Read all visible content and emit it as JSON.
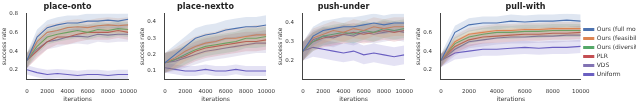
{
  "chart_data": [
    {
      "type": "line",
      "title": "place-onto",
      "x_label": "iterations",
      "y_label": "success rate",
      "x": [
        0,
        1000,
        2000,
        3000,
        4000,
        5000,
        6000,
        7000,
        8000,
        9000,
        10000
      ],
      "xlim": [
        0,
        10000
      ],
      "xticks": [
        0,
        2000,
        4000,
        6000,
        8000,
        10000
      ],
      "ylim": [
        0.1,
        0.8
      ],
      "yticks": [
        0.2,
        0.4,
        0.6,
        0.8
      ],
      "grid": false,
      "series": [
        {
          "name": "Ours (full model)",
          "color": "#4c72b0",
          "values": [
            0.3,
            0.55,
            0.65,
            0.68,
            0.7,
            0.7,
            0.72,
            0.72,
            0.73,
            0.72,
            0.74
          ],
          "error": [
            0.08,
            0.08,
            0.08,
            0.08,
            0.08,
            0.08,
            0.08,
            0.08,
            0.08,
            0.08,
            0.08
          ]
        },
        {
          "name": "Ours (feasibility only)",
          "color": "#dd8452",
          "values": [
            0.3,
            0.5,
            0.6,
            0.62,
            0.65,
            0.66,
            0.65,
            0.67,
            0.68,
            0.67,
            0.68
          ],
          "error": [
            0.08,
            0.08,
            0.08,
            0.08,
            0.08,
            0.08,
            0.08,
            0.08,
            0.08,
            0.08,
            0.08
          ]
        },
        {
          "name": "Ours (diversity only)",
          "color": "#55a868",
          "values": [
            0.3,
            0.45,
            0.55,
            0.58,
            0.6,
            0.62,
            0.6,
            0.63,
            0.62,
            0.64,
            0.63
          ],
          "error": [
            0.08,
            0.08,
            0.08,
            0.08,
            0.08,
            0.08,
            0.08,
            0.08,
            0.08,
            0.08,
            0.08
          ]
        },
        {
          "name": "PLR",
          "color": "#c44e52",
          "values": [
            0.3,
            0.4,
            0.5,
            0.55,
            0.55,
            0.58,
            0.6,
            0.6,
            0.6,
            0.62,
            0.6
          ],
          "error": [
            0.08,
            0.08,
            0.08,
            0.08,
            0.08,
            0.08,
            0.08,
            0.08,
            0.08,
            0.08,
            0.08
          ]
        },
        {
          "name": "VDS",
          "color": "#8172b3",
          "values": [
            0.3,
            0.42,
            0.5,
            0.52,
            0.55,
            0.56,
            0.55,
            0.58,
            0.57,
            0.58,
            0.58
          ],
          "error": [
            0.08,
            0.08,
            0.08,
            0.08,
            0.08,
            0.08,
            0.08,
            0.08,
            0.08,
            0.08,
            0.08
          ]
        },
        {
          "name": "Uniform",
          "color": "#6a5fc1",
          "values": [
            0.2,
            0.17,
            0.15,
            0.16,
            0.15,
            0.14,
            0.15,
            0.15,
            0.14,
            0.15,
            0.15
          ],
          "error": [
            0.05,
            0.05,
            0.05,
            0.05,
            0.05,
            0.05,
            0.05,
            0.05,
            0.05,
            0.05,
            0.05
          ]
        }
      ]
    },
    {
      "type": "line",
      "title": "place-nextto",
      "x_label": "iterations",
      "y_label": "success rate",
      "x": [
        0,
        1000,
        2000,
        3000,
        4000,
        5000,
        6000,
        7000,
        8000,
        9000,
        10000
      ],
      "xlim": [
        0,
        10000
      ],
      "xticks": [
        0,
        2000,
        4000,
        6000,
        8000,
        10000
      ],
      "ylim": [
        0.05,
        0.45
      ],
      "yticks": [
        0.1,
        0.2,
        0.3,
        0.4
      ],
      "grid": false,
      "series": [
        {
          "name": "Ours (full model)",
          "color": "#4c72b0",
          "values": [
            0.15,
            0.2,
            0.25,
            0.3,
            0.32,
            0.33,
            0.35,
            0.36,
            0.37,
            0.37,
            0.38
          ],
          "error": [
            0.06,
            0.06,
            0.06,
            0.06,
            0.06,
            0.06,
            0.06,
            0.06,
            0.06,
            0.06,
            0.06
          ]
        },
        {
          "name": "Ours (feasibility only)",
          "color": "#dd8452",
          "values": [
            0.15,
            0.18,
            0.22,
            0.25,
            0.27,
            0.28,
            0.3,
            0.3,
            0.31,
            0.32,
            0.32
          ],
          "error": [
            0.06,
            0.06,
            0.06,
            0.06,
            0.06,
            0.06,
            0.06,
            0.06,
            0.06,
            0.06,
            0.06
          ]
        },
        {
          "name": "Ours (diversity only)",
          "color": "#55a868",
          "values": [
            0.15,
            0.17,
            0.2,
            0.23,
            0.25,
            0.26,
            0.27,
            0.28,
            0.3,
            0.3,
            0.31
          ],
          "error": [
            0.06,
            0.06,
            0.06,
            0.06,
            0.06,
            0.06,
            0.06,
            0.06,
            0.06,
            0.06,
            0.06
          ]
        },
        {
          "name": "PLR",
          "color": "#c44e52",
          "values": [
            0.15,
            0.17,
            0.19,
            0.22,
            0.24,
            0.25,
            0.26,
            0.27,
            0.28,
            0.28,
            0.29
          ],
          "error": [
            0.06,
            0.06,
            0.06,
            0.06,
            0.06,
            0.06,
            0.06,
            0.06,
            0.06,
            0.06,
            0.06
          ]
        },
        {
          "name": "VDS",
          "color": "#8172b3",
          "values": [
            0.15,
            0.16,
            0.18,
            0.2,
            0.22,
            0.23,
            0.24,
            0.25,
            0.26,
            0.27,
            0.27
          ],
          "error": [
            0.06,
            0.06,
            0.06,
            0.06,
            0.06,
            0.06,
            0.06,
            0.06,
            0.06,
            0.06,
            0.06
          ]
        },
        {
          "name": "Uniform",
          "color": "#6a5fc1",
          "values": [
            0.12,
            0.11,
            0.1,
            0.1,
            0.11,
            0.1,
            0.1,
            0.11,
            0.1,
            0.1,
            0.1
          ],
          "error": [
            0.03,
            0.03,
            0.03,
            0.03,
            0.03,
            0.03,
            0.03,
            0.03,
            0.03,
            0.03,
            0.03
          ]
        }
      ]
    },
    {
      "type": "line",
      "title": "push-under",
      "x_label": "iterations",
      "y_label": "success rate",
      "x": [
        0,
        1000,
        2000,
        3000,
        4000,
        5000,
        6000,
        7000,
        8000,
        9000,
        10000
      ],
      "xlim": [
        0,
        10000
      ],
      "xticks": [
        0,
        2000,
        4000,
        6000,
        8000,
        10000
      ],
      "ylim": [
        0.1,
        0.45
      ],
      "yticks": [
        0.2,
        0.3,
        0.4
      ],
      "grid": false,
      "series": [
        {
          "name": "Ours (full model)",
          "color": "#4c72b0",
          "values": [
            0.25,
            0.33,
            0.36,
            0.37,
            0.38,
            0.38,
            0.39,
            0.4,
            0.39,
            0.4,
            0.4
          ],
          "error": [
            0.05,
            0.05,
            0.05,
            0.05,
            0.05,
            0.05,
            0.05,
            0.05,
            0.05,
            0.05,
            0.05
          ]
        },
        {
          "name": "Ours (feasibility only)",
          "color": "#dd8452",
          "values": [
            0.25,
            0.32,
            0.34,
            0.36,
            0.35,
            0.37,
            0.36,
            0.38,
            0.37,
            0.38,
            0.38
          ],
          "error": [
            0.05,
            0.05,
            0.05,
            0.05,
            0.05,
            0.05,
            0.05,
            0.05,
            0.05,
            0.05,
            0.05
          ]
        },
        {
          "name": "Ours (diversity only)",
          "color": "#55a868",
          "values": [
            0.25,
            0.3,
            0.33,
            0.34,
            0.35,
            0.34,
            0.36,
            0.35,
            0.37,
            0.36,
            0.37
          ],
          "error": [
            0.05,
            0.05,
            0.05,
            0.05,
            0.05,
            0.05,
            0.05,
            0.05,
            0.05,
            0.05,
            0.05
          ]
        },
        {
          "name": "PLR",
          "color": "#c44e52",
          "values": [
            0.25,
            0.3,
            0.32,
            0.33,
            0.34,
            0.35,
            0.34,
            0.35,
            0.36,
            0.35,
            0.36
          ],
          "error": [
            0.05,
            0.05,
            0.05,
            0.05,
            0.05,
            0.05,
            0.05,
            0.05,
            0.05,
            0.05,
            0.05
          ]
        },
        {
          "name": "VDS",
          "color": "#8172b3",
          "values": [
            0.25,
            0.31,
            0.33,
            0.32,
            0.34,
            0.33,
            0.35,
            0.34,
            0.35,
            0.36,
            0.35
          ],
          "error": [
            0.05,
            0.05,
            0.05,
            0.05,
            0.05,
            0.05,
            0.05,
            0.05,
            0.05,
            0.05,
            0.05
          ]
        },
        {
          "name": "Uniform",
          "color": "#6a5fc1",
          "values": [
            0.25,
            0.27,
            0.26,
            0.25,
            0.24,
            0.25,
            0.23,
            0.24,
            0.23,
            0.22,
            0.23
          ],
          "error": [
            0.05,
            0.05,
            0.05,
            0.05,
            0.05,
            0.05,
            0.05,
            0.05,
            0.05,
            0.05,
            0.05
          ]
        }
      ]
    },
    {
      "type": "line",
      "title": "pull-with",
      "x_label": "iterations",
      "y_label": "success rate",
      "x": [
        0,
        1000,
        2000,
        3000,
        4000,
        5000,
        6000,
        7000,
        8000,
        9000,
        10000
      ],
      "xlim": [
        0,
        10000
      ],
      "xticks": [
        0,
        2000,
        4000,
        6000,
        8000,
        10000
      ],
      "ylim": [
        0.1,
        0.8
      ],
      "yticks": [
        0.2,
        0.4,
        0.6
      ],
      "grid": false,
      "legend": "right",
      "series": [
        {
          "name": "Ours (full model)",
          "color": "#4c72b0",
          "values": [
            0.3,
            0.6,
            0.68,
            0.7,
            0.7,
            0.72,
            0.71,
            0.72,
            0.72,
            0.73,
            0.72
          ],
          "error": [
            0.07,
            0.07,
            0.07,
            0.07,
            0.07,
            0.07,
            0.07,
            0.07,
            0.07,
            0.07,
            0.07
          ]
        },
        {
          "name": "Ours (feasibility only)",
          "color": "#dd8452",
          "values": [
            0.3,
            0.5,
            0.58,
            0.6,
            0.62,
            0.62,
            0.63,
            0.63,
            0.64,
            0.64,
            0.64
          ],
          "error": [
            0.07,
            0.07,
            0.07,
            0.07,
            0.07,
            0.07,
            0.07,
            0.07,
            0.07,
            0.07,
            0.07
          ]
        },
        {
          "name": "Ours (diversity only)",
          "color": "#55a868",
          "values": [
            0.3,
            0.48,
            0.55,
            0.58,
            0.6,
            0.6,
            0.61,
            0.61,
            0.62,
            0.62,
            0.62
          ],
          "error": [
            0.07,
            0.07,
            0.07,
            0.07,
            0.07,
            0.07,
            0.07,
            0.07,
            0.07,
            0.07,
            0.07
          ]
        },
        {
          "name": "PLR",
          "color": "#c44e52",
          "values": [
            0.3,
            0.45,
            0.52,
            0.55,
            0.56,
            0.57,
            0.58,
            0.58,
            0.59,
            0.59,
            0.6
          ],
          "error": [
            0.07,
            0.07,
            0.07,
            0.07,
            0.07,
            0.07,
            0.07,
            0.07,
            0.07,
            0.07,
            0.07
          ]
        },
        {
          "name": "VDS",
          "color": "#8172b3",
          "values": [
            0.3,
            0.42,
            0.5,
            0.52,
            0.54,
            0.55,
            0.55,
            0.56,
            0.56,
            0.57,
            0.57
          ],
          "error": [
            0.07,
            0.07,
            0.07,
            0.07,
            0.07,
            0.07,
            0.07,
            0.07,
            0.07,
            0.07,
            0.07
          ]
        },
        {
          "name": "Uniform",
          "color": "#6a5fc1",
          "values": [
            0.3,
            0.38,
            0.4,
            0.42,
            0.42,
            0.43,
            0.44,
            0.43,
            0.44,
            0.44,
            0.45
          ],
          "error": [
            0.07,
            0.07,
            0.07,
            0.07,
            0.07,
            0.07,
            0.07,
            0.07,
            0.07,
            0.07,
            0.07
          ]
        }
      ]
    }
  ]
}
